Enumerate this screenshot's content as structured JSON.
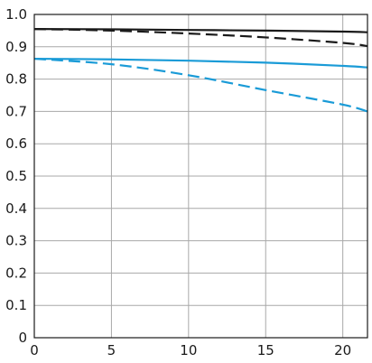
{
  "chart_data": {
    "type": "line",
    "title": "",
    "xlabel": "",
    "ylabel": "",
    "xlim": [
      0,
      21.6
    ],
    "ylim": [
      0,
      1.0
    ],
    "grid": true,
    "xticks": [
      0,
      5,
      10,
      15,
      20
    ],
    "yticks": [
      0,
      0.1,
      0.2,
      0.3,
      0.4,
      0.5,
      0.6,
      0.7,
      0.8,
      0.9,
      1.0
    ],
    "xtick_labels": [
      "0",
      "5",
      "10",
      "15",
      "20"
    ],
    "ytick_labels": [
      "0",
      "0.1",
      "0.2",
      "0.3",
      "0.4",
      "0.5",
      "0.6",
      "0.7",
      "0.8",
      "0.9",
      "1.0"
    ],
    "series": [
      {
        "color": "#1a1a1a",
        "dash": "solid",
        "x": [
          0,
          5,
          10,
          15,
          20,
          21.6
        ],
        "y": [
          0.955,
          0.954,
          0.952,
          0.95,
          0.947,
          0.945
        ]
      },
      {
        "color": "#1a1a1a",
        "dash": "dashed",
        "x": [
          0,
          5,
          10,
          15,
          20,
          21.6
        ],
        "y": [
          0.955,
          0.95,
          0.941,
          0.929,
          0.912,
          0.902
        ]
      },
      {
        "color": "#1a9bd7",
        "dash": "solid",
        "x": [
          0,
          5,
          10,
          15,
          20,
          21.6
        ],
        "y": [
          0.863,
          0.861,
          0.857,
          0.851,
          0.841,
          0.836
        ]
      },
      {
        "color": "#1a9bd7",
        "dash": "dashed",
        "x": [
          0,
          5,
          10,
          15,
          20,
          21.6
        ],
        "y": [
          0.863,
          0.846,
          0.812,
          0.766,
          0.721,
          0.7
        ]
      }
    ]
  }
}
